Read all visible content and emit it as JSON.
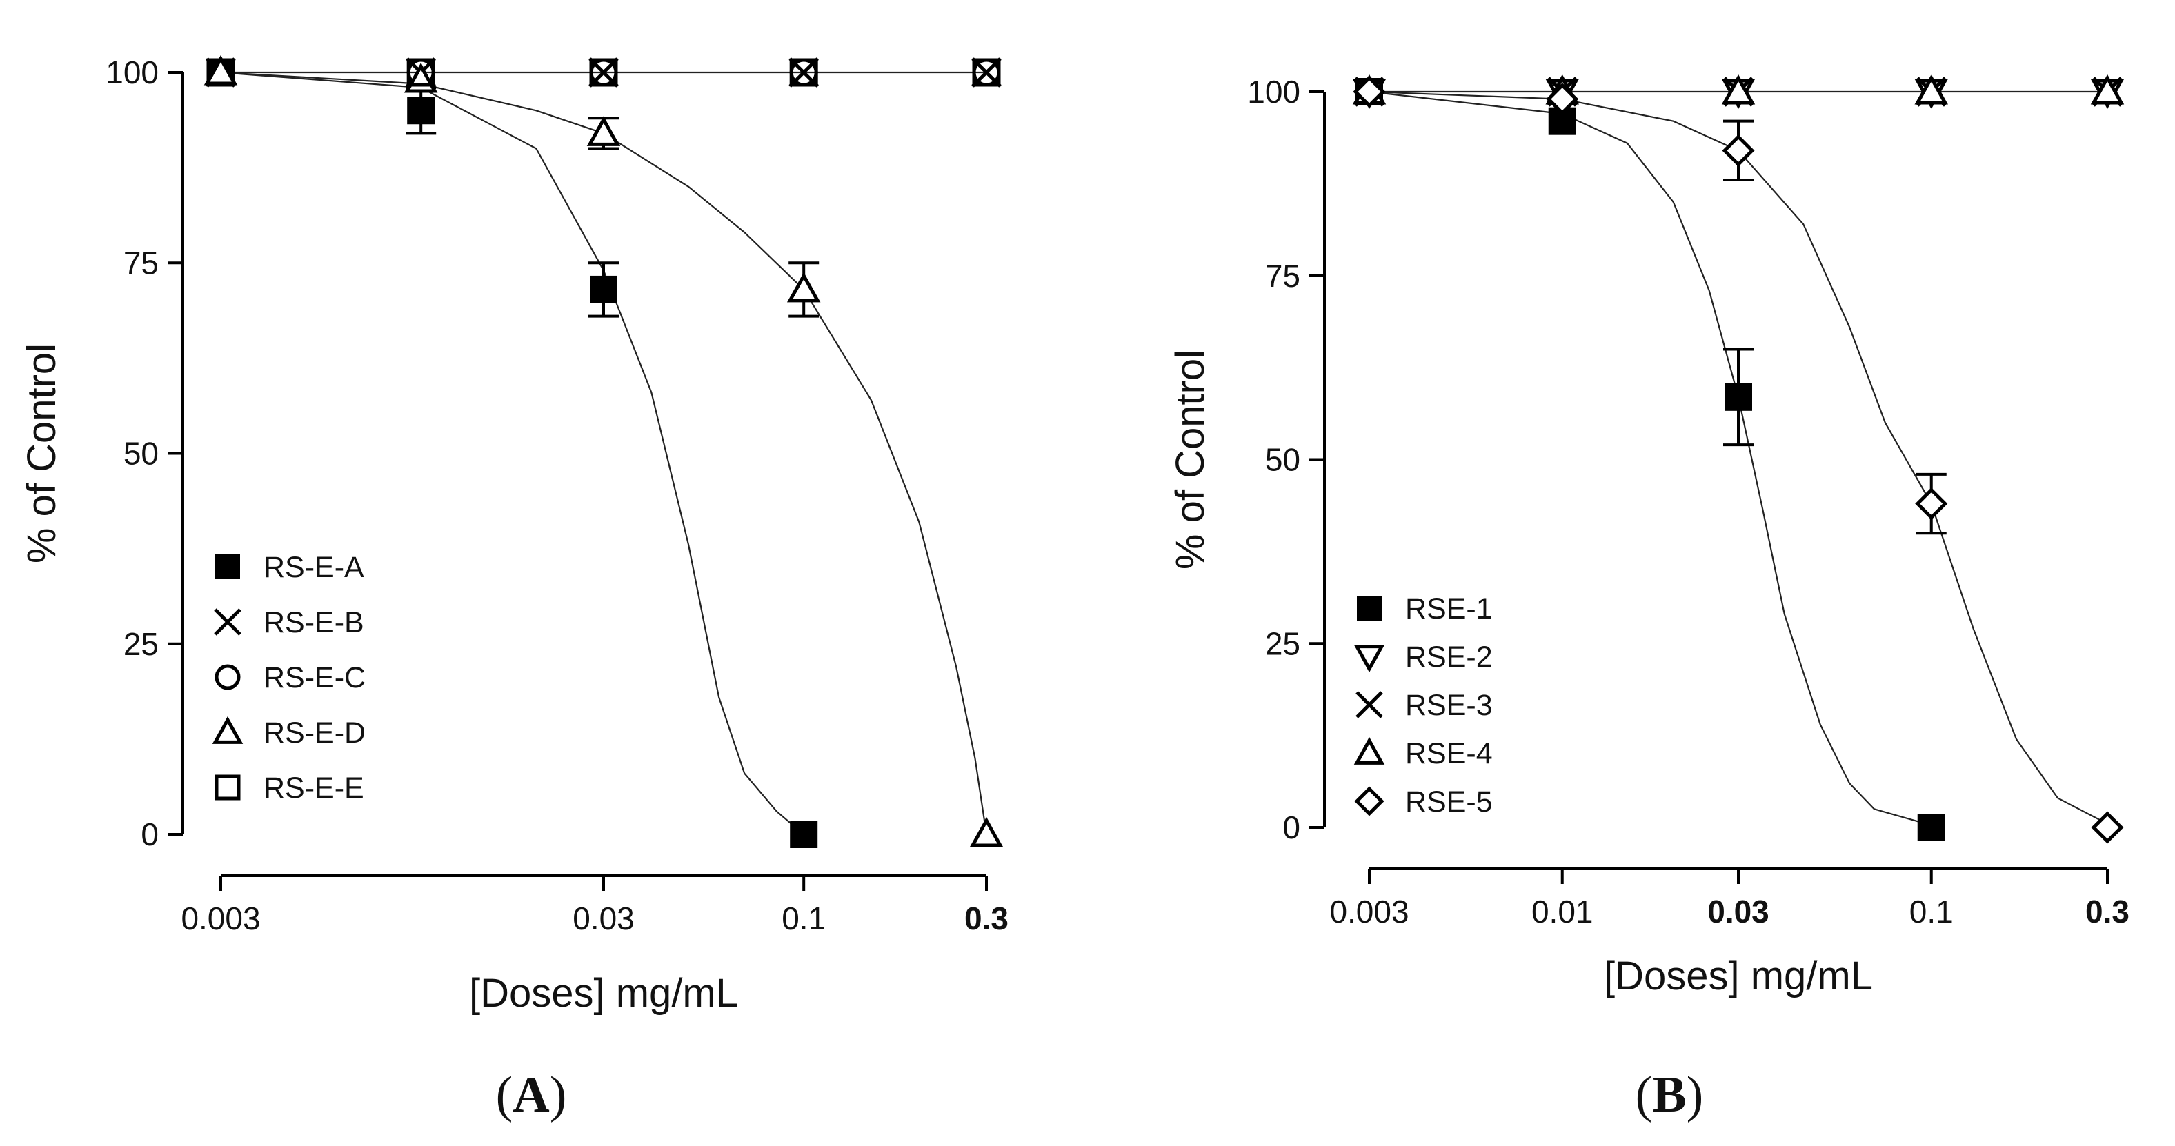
{
  "chart_data": [
    {
      "panel": "A",
      "caption": "A",
      "type": "line",
      "curve_style": "fitted dose-response curves with markers and error bars",
      "xlabel": "[Doses] mg/mL",
      "ylabel": "% of Control",
      "x_scale": "log",
      "xlim": [
        0.003,
        0.3
      ],
      "ylim": [
        0,
        100
      ],
      "x_ticks": [
        0.003,
        0.03,
        0.1,
        0.3
      ],
      "x_tick_labels": [
        "0.003",
        "0.03",
        "0.1",
        "0.3"
      ],
      "x_tick_bold": [
        false,
        false,
        false,
        true
      ],
      "y_ticks": [
        0,
        25,
        50,
        75,
        100
      ],
      "y_tick_labels": [
        "0",
        "25",
        "50",
        "75",
        "100"
      ],
      "legend_position": "lower-left",
      "series": [
        {
          "name": "RS-E-A",
          "marker": "filled-square",
          "x": [
            0.003,
            0.01,
            0.03,
            0.1
          ],
          "y": [
            100,
            95,
            71.5,
            0
          ],
          "err": [
            0,
            3,
            3.5,
            0
          ],
          "curve": [
            [
              0.003,
              100
            ],
            [
              0.01,
              98
            ],
            [
              0.02,
              90
            ],
            [
              0.03,
              74
            ],
            [
              0.04,
              58
            ],
            [
              0.05,
              38
            ],
            [
              0.06,
              18
            ],
            [
              0.07,
              8
            ],
            [
              0.085,
              3
            ],
            [
              0.1,
              0
            ]
          ]
        },
        {
          "name": "RS-E-B",
          "marker": "x",
          "x": [
            0.003,
            0.01,
            0.03,
            0.1,
            0.3
          ],
          "y": [
            100,
            100,
            100,
            100,
            100
          ],
          "err": [
            0,
            0,
            0,
            0,
            0
          ],
          "curve": [
            [
              0.003,
              100
            ],
            [
              0.3,
              100
            ]
          ]
        },
        {
          "name": "RS-E-C",
          "marker": "open-circle",
          "x": [
            0.003,
            0.01,
            0.03,
            0.1,
            0.3
          ],
          "y": [
            100,
            100,
            100,
            100,
            100
          ],
          "err": [
            0,
            0,
            0,
            0,
            0
          ],
          "curve": []
        },
        {
          "name": "RS-E-D",
          "marker": "open-triangle",
          "x": [
            0.003,
            0.01,
            0.03,
            0.1,
            0.3
          ],
          "y": [
            100,
            99,
            92,
            71.5,
            0
          ],
          "err": [
            0,
            0,
            2,
            3.5,
            0
          ],
          "curve": [
            [
              0.003,
              100
            ],
            [
              0.01,
              98.5
            ],
            [
              0.02,
              95
            ],
            [
              0.03,
              92
            ],
            [
              0.05,
              85
            ],
            [
              0.07,
              79
            ],
            [
              0.1,
              71.5
            ],
            [
              0.15,
              57
            ],
            [
              0.2,
              41
            ],
            [
              0.25,
              22
            ],
            [
              0.28,
              10
            ],
            [
              0.3,
              0
            ]
          ]
        },
        {
          "name": "RS-E-E",
          "marker": "open-square",
          "x": [
            0.003,
            0.01,
            0.03,
            0.1,
            0.3
          ],
          "y": [
            100,
            100,
            100,
            100,
            100
          ],
          "err": [
            0,
            0,
            0,
            0,
            0
          ],
          "curve": []
        }
      ]
    },
    {
      "panel": "B",
      "caption": "B",
      "type": "line",
      "curve_style": "fitted dose-response curves with markers and error bars",
      "xlabel": "[Doses] mg/mL",
      "ylabel": "% of Control",
      "x_scale": "log",
      "xlim": [
        0.003,
        0.3
      ],
      "ylim": [
        0,
        100
      ],
      "x_ticks": [
        0.003,
        0.01,
        0.03,
        0.1,
        0.3
      ],
      "x_tick_labels": [
        "0.003",
        "0.01",
        "0.03",
        "0.1",
        "0.3"
      ],
      "x_tick_bold": [
        false,
        false,
        true,
        false,
        true
      ],
      "y_ticks": [
        0,
        25,
        50,
        75,
        100
      ],
      "y_tick_labels": [
        "0",
        "25",
        "50",
        "75",
        "100"
      ],
      "legend_position": "lower-left",
      "series": [
        {
          "name": "RSE-1",
          "marker": "filled-square",
          "x": [
            0.003,
            0.01,
            0.03,
            0.1
          ],
          "y": [
            100,
            96,
            58.5,
            0
          ],
          "err": [
            0,
            0,
            6.5,
            0
          ],
          "curve": [
            [
              0.003,
              100
            ],
            [
              0.01,
              97
            ],
            [
              0.015,
              93
            ],
            [
              0.02,
              85
            ],
            [
              0.025,
              73
            ],
            [
              0.03,
              58.5
            ],
            [
              0.035,
              43
            ],
            [
              0.04,
              29
            ],
            [
              0.05,
              14
            ],
            [
              0.06,
              6
            ],
            [
              0.07,
              2.5
            ],
            [
              0.1,
              0.3
            ]
          ]
        },
        {
          "name": "RSE-2",
          "marker": "open-triangle-down",
          "x": [
            0.003,
            0.01,
            0.03,
            0.1,
            0.3
          ],
          "y": [
            100,
            100,
            100,
            100,
            100
          ],
          "err": [
            0,
            0,
            0,
            0,
            0
          ],
          "curve": [
            [
              0.003,
              100
            ],
            [
              0.3,
              100
            ]
          ]
        },
        {
          "name": "RSE-3",
          "marker": "x",
          "x": [
            0.003,
            0.01,
            0.03,
            0.1,
            0.3
          ],
          "y": [
            100,
            100,
            100,
            100,
            100
          ],
          "err": [
            0,
            0,
            0,
            0,
            0
          ],
          "curve": []
        },
        {
          "name": "RSE-4",
          "marker": "open-triangle",
          "x": [
            0.003,
            0.01,
            0.03,
            0.1,
            0.3
          ],
          "y": [
            100,
            100,
            100,
            100,
            100
          ],
          "err": [
            0,
            0,
            0,
            0,
            0
          ],
          "curve": []
        },
        {
          "name": "RSE-5",
          "marker": "open-diamond",
          "x": [
            0.003,
            0.01,
            0.03,
            0.1,
            0.3
          ],
          "y": [
            100,
            99,
            92,
            44,
            0
          ],
          "err": [
            0,
            0,
            4,
            4,
            0
          ],
          "curve": [
            [
              0.003,
              100
            ],
            [
              0.01,
              99
            ],
            [
              0.02,
              96
            ],
            [
              0.03,
              92
            ],
            [
              0.045,
              82
            ],
            [
              0.06,
              68
            ],
            [
              0.075,
              55
            ],
            [
              0.1,
              44
            ],
            [
              0.13,
              27
            ],
            [
              0.17,
              12
            ],
            [
              0.22,
              4
            ],
            [
              0.3,
              0.5
            ]
          ]
        }
      ]
    }
  ]
}
